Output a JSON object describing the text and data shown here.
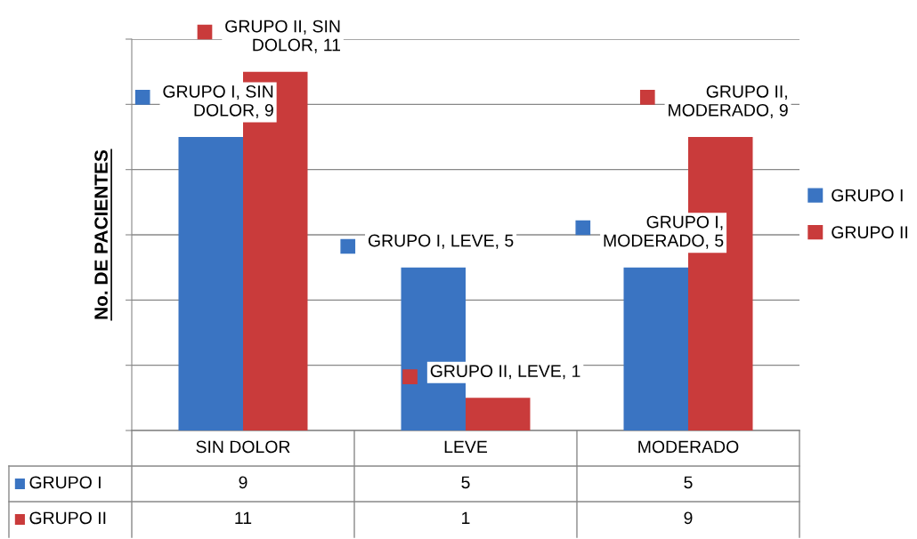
{
  "chart_data": {
    "type": "bar",
    "ylabel": "No. DE PACIENTES",
    "categories": [
      "SIN DOLOR",
      "LEVE",
      "MODERADO"
    ],
    "series": [
      {
        "name": "GRUPO I",
        "color": "#3a74c2",
        "values": [
          9,
          5,
          5
        ]
      },
      {
        "name": "GRUPO II",
        "color": "#c93b3b",
        "values": [
          11,
          1,
          9
        ]
      }
    ],
    "annotations": [
      {
        "text": "GRUPO I, SIN\nDOLOR, 9",
        "x": "SIN DOLOR",
        "y": 9
      },
      {
        "text": "GRUPO I, LEVE, 5",
        "x": "LEVE",
        "y": 5
      },
      {
        "text": "GRUPO I,\nMODERADO, 5",
        "x": "MODERADO",
        "y": 5
      },
      {
        "text": "GRUPO II, SIN\nDOLOR, 11",
        "x": "SIN DOLOR",
        "y": 11
      },
      {
        "text": "GRUPO II, LEVE, 1",
        "x": "LEVE",
        "y": 1
      },
      {
        "text": "GRUPO II,\nMODERADO, 9",
        "x": "MODERADO",
        "y": 9
      }
    ],
    "ylim": [
      0,
      12
    ],
    "yticks": [
      {
        "value": 0,
        "label": null
      },
      {
        "value": 2,
        "label": null
      },
      {
        "value": 4,
        "label": null
      },
      {
        "value": 6,
        "label": null
      },
      {
        "value": 8,
        "label": null
      },
      {
        "value": 10,
        "label": null
      },
      {
        "value": 12,
        "label": null
      }
    ],
    "grid": "y",
    "legend": "right",
    "data_labels": true
  }
}
